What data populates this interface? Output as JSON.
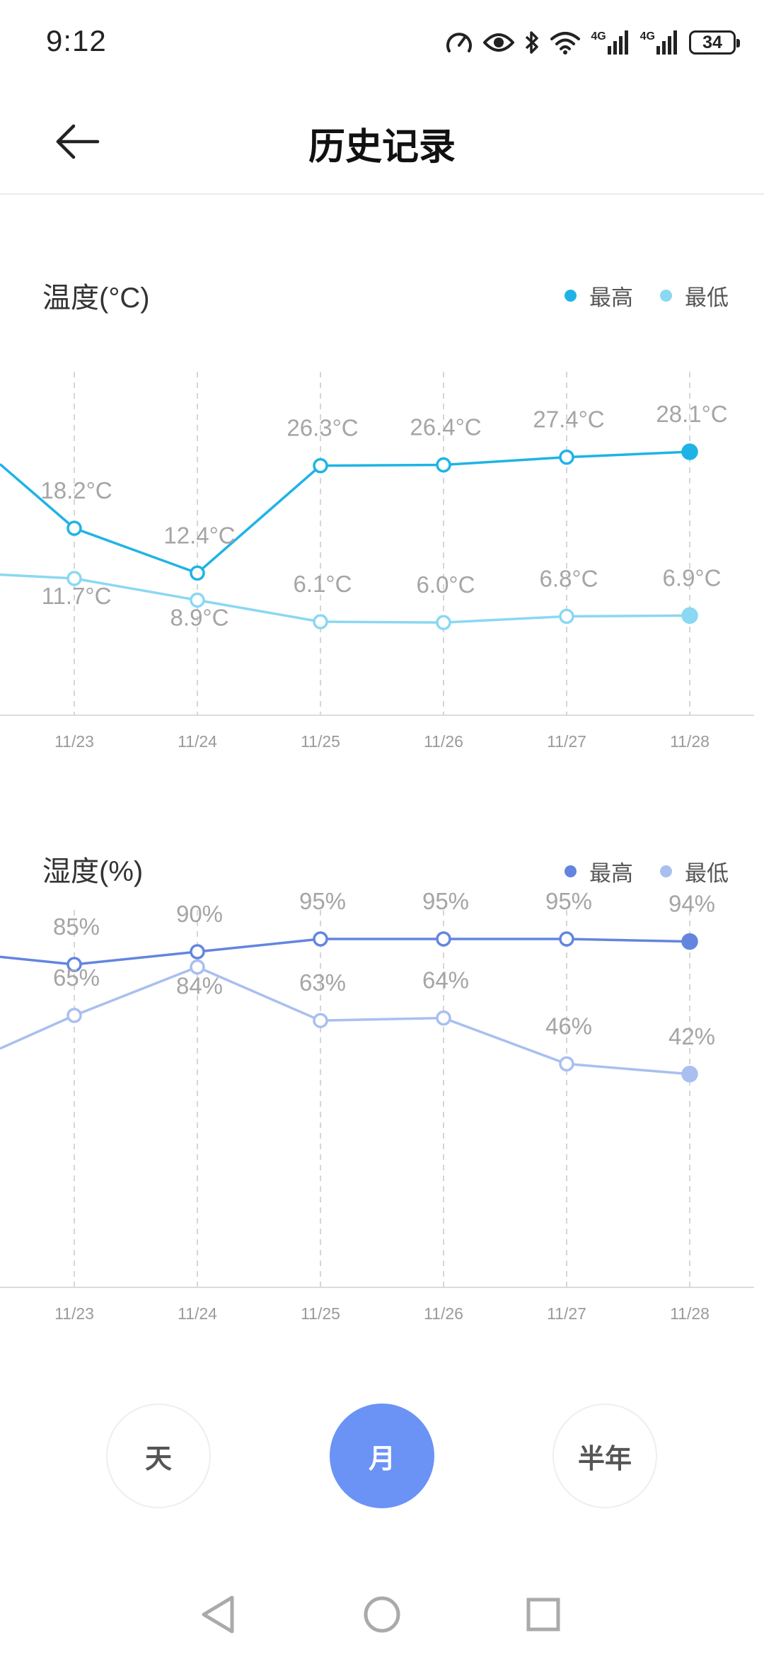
{
  "status_bar": {
    "time": "9:12",
    "battery": "34",
    "network_labels": [
      "4G",
      "4G"
    ],
    "icons": [
      "speed-icon",
      "eye-icon",
      "bluetooth-icon",
      "wifi-icon",
      "signal-icon",
      "signal-icon",
      "battery-icon"
    ]
  },
  "header": {
    "title": "历史记录",
    "back_icon": "arrow-left-icon"
  },
  "temperature": {
    "title": "温度(°C)",
    "legend": [
      "最高",
      "最低"
    ],
    "colors": {
      "high": "#1fb3e5",
      "low": "#8ad8f2"
    }
  },
  "humidity": {
    "title": "湿度(%)",
    "legend": [
      "最高",
      "最低"
    ],
    "colors": {
      "high": "#6385df",
      "low": "#a9bff0"
    }
  },
  "chart_data": [
    {
      "type": "line",
      "title": "温度(°C)",
      "categories": [
        "11/23",
        "11/24",
        "11/25",
        "11/26",
        "11/27",
        "11/28"
      ],
      "series": [
        {
          "name": "最高",
          "values": [
            18.2,
            12.4,
            26.3,
            26.4,
            27.4,
            28.1
          ],
          "labels": [
            "18.2°C",
            "12.4°C",
            "26.3°C",
            "26.4°C",
            "27.4°C",
            "28.1°C"
          ]
        },
        {
          "name": "最低",
          "values": [
            11.7,
            8.9,
            6.1,
            6.0,
            6.8,
            6.9
          ],
          "labels": [
            "11.7°C",
            "8.9°C",
            "6.1°C",
            "6.0°C",
            "6.8°C",
            "6.9°C"
          ]
        }
      ],
      "ylim": [
        -6,
        38
      ],
      "grid": "vertical-dashed",
      "legend_position": "top-right"
    },
    {
      "type": "line",
      "title": "湿度(%)",
      "categories": [
        "11/23",
        "11/24",
        "11/25",
        "11/26",
        "11/27",
        "11/28"
      ],
      "series": [
        {
          "name": "最高",
          "values": [
            85,
            90,
            95,
            95,
            95,
            94
          ],
          "labels": [
            "85%",
            "90%",
            "95%",
            "95%",
            "95%",
            "94%"
          ]
        },
        {
          "name": "最低",
          "values": [
            65,
            84,
            63,
            64,
            46,
            42
          ],
          "labels": [
            "65%",
            "84%",
            "63%",
            "64%",
            "46%",
            "42%"
          ]
        }
      ],
      "ylim": [
        -45,
        105
      ],
      "grid": "vertical-dashed",
      "legend_position": "top-right"
    }
  ],
  "range_buttons": [
    {
      "label": "天",
      "active": false
    },
    {
      "label": "月",
      "active": true
    },
    {
      "label": "半年",
      "active": false
    }
  ],
  "nav_bar": {
    "icons": [
      "nav-back-icon",
      "nav-home-icon",
      "nav-recents-icon"
    ]
  }
}
